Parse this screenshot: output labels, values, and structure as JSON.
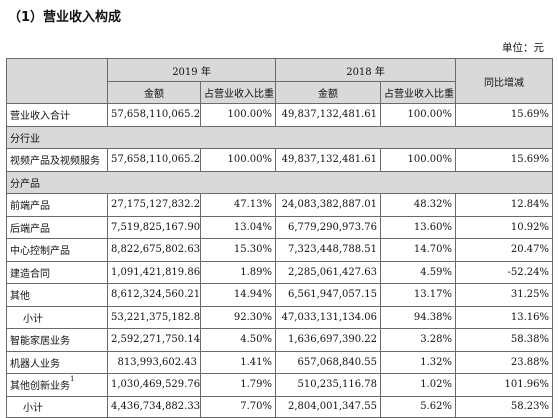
{
  "title": "（1）营业收入构成",
  "unit": "单位：元",
  "header": {
    "year_2019": "2019 年",
    "year_2018": "2018 年",
    "yoy": "同比增减",
    "amount": "金额",
    "share": "占营业收入比重"
  },
  "total_row": {
    "label": "营业收入合计",
    "a2019": "57,658,110,065.22",
    "p2019": "100.00%",
    "a2018": "49,837,132,481.61",
    "p2018": "100.00%",
    "yoy": "15.69%"
  },
  "section_industry": "分行业",
  "industry_row": {
    "label": "视频产品及视频服务",
    "a2019": "57,658,110,065.22",
    "p2019": "100.00%",
    "a2018": "49,837,132,481.61",
    "p2018": "100.00%",
    "yoy": "15.69%"
  },
  "section_product": "分产品",
  "rows": [
    {
      "label": "前端产品",
      "a2019": "27,175,127,832.29",
      "p2019": "47.13%",
      "a2018": "24,083,382,887.01",
      "p2018": "48.32%",
      "yoy": "12.84%"
    },
    {
      "label": "后端产品",
      "a2019": "7,519,825,167.90",
      "p2019": "13.04%",
      "a2018": "6,779,290,973.76",
      "p2018": "13.60%",
      "yoy": "10.92%"
    },
    {
      "label": "中心控制产品",
      "a2019": "8,822,675,802.63",
      "p2019": "15.30%",
      "a2018": "7,323,448,788.51",
      "p2018": "14.70%",
      "yoy": "20.47%"
    },
    {
      "label": "建造合同",
      "a2019": "1,091,421,819.86",
      "p2019": "1.89%",
      "a2018": "2,285,061,427.63",
      "p2018": "4.59%",
      "yoy": "-52.24%"
    },
    {
      "label": "其他",
      "a2019": "8,612,324,560.21",
      "p2019": "14.94%",
      "a2018": "6,561,947,057.15",
      "p2018": "13.17%",
      "yoy": "31.25%"
    },
    {
      "label": "小计",
      "a2019": "53,221,375,182.89",
      "p2019": "92.30%",
      "a2018": "47,033,131,134.06",
      "p2018": "94.38%",
      "yoy": "13.16%"
    },
    {
      "label": "智能家居业务",
      "a2019": "2,592,271,750.14",
      "p2019": "4.50%",
      "a2018": "1,636,697,390.22",
      "p2018": "3.28%",
      "yoy": "58.38%"
    },
    {
      "label": "机器人业务",
      "a2019": "813,993,602.43",
      "p2019": "1.41%",
      "a2018": "657,068,840.55",
      "p2018": "1.32%",
      "yoy": "23.88%"
    },
    {
      "label": "其他创新业务",
      "footnote": "1",
      "a2019": "1,030,469,529.76",
      "p2019": "1.79%",
      "a2018": "510,235,116.78",
      "p2018": "1.02%",
      "yoy": "101.96%"
    },
    {
      "label": "小计",
      "a2019": "4,436,734,882.33",
      "p2019": "7.70%",
      "a2018": "2,804,001,347.55",
      "p2018": "5.62%",
      "yoy": "58.23%"
    }
  ]
}
